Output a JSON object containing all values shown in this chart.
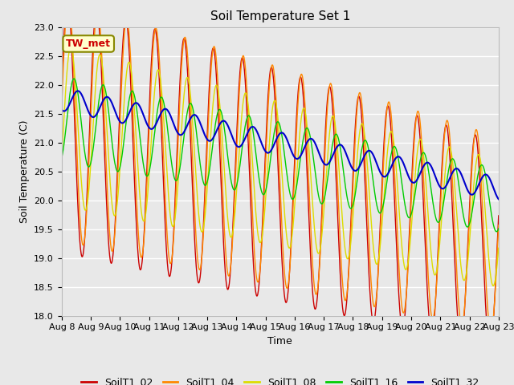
{
  "title": "Soil Temperature Set 1",
  "xlabel": "Time",
  "ylabel": "Soil Temperature (C)",
  "ylim": [
    18.0,
    23.0
  ],
  "yticks": [
    18.0,
    18.5,
    19.0,
    19.5,
    20.0,
    20.5,
    21.0,
    21.5,
    22.0,
    22.5,
    23.0
  ],
  "xtick_labels": [
    "Aug 8",
    "Aug 9",
    "Aug 10",
    "Aug 11",
    "Aug 12",
    "Aug 13",
    "Aug 14",
    "Aug 15",
    "Aug 16",
    "Aug 17",
    "Aug 18",
    "Aug 19",
    "Aug 20",
    "Aug 21",
    "Aug 22",
    "Aug 23"
  ],
  "colors": {
    "SoilT1_02": "#cc0000",
    "SoilT1_04": "#ff8800",
    "SoilT1_08": "#dddd00",
    "SoilT1_16": "#00cc00",
    "SoilT1_32": "#0000cc"
  },
  "annotation_text": "TW_met",
  "annotation_color": "#cc0000",
  "annotation_bg": "#ffffcc",
  "annotation_border": "#888800",
  "plot_bg": "#e8e8e8",
  "grid_color": "#ffffff",
  "fig_bg": "#e8e8e8",
  "title_fontsize": 11,
  "axis_fontsize": 9,
  "tick_fontsize": 8,
  "legend_fontsize": 9,
  "n_points": 1440,
  "days": 15
}
